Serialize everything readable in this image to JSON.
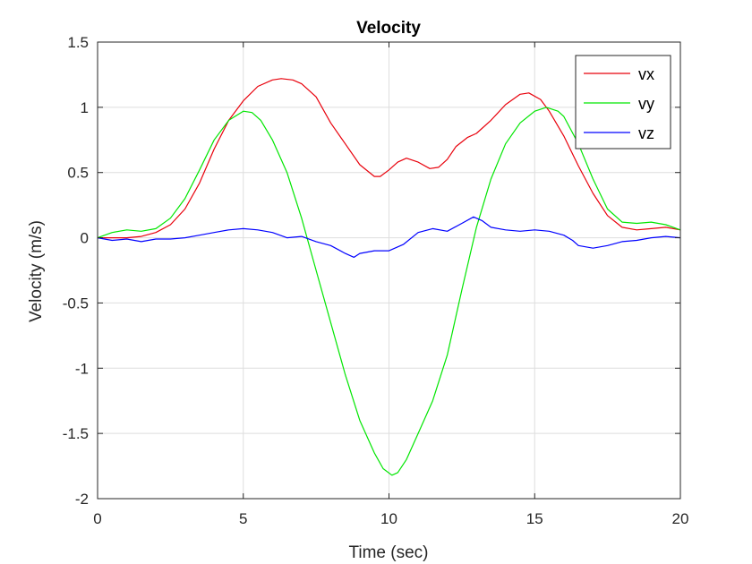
{
  "chart_data": {
    "type": "line",
    "title": "Velocity",
    "xlabel": "Time (sec)",
    "ylabel": "Velocity (m/s)",
    "xlim": [
      0,
      20
    ],
    "ylim": [
      -2,
      1.5
    ],
    "xticks": [
      0,
      5,
      10,
      15,
      20
    ],
    "yticks": [
      1.5,
      1,
      0.5,
      0,
      -0.5,
      -1,
      -1.5,
      -2
    ],
    "xtick_labels": [
      "0",
      "5",
      "10",
      "15",
      "20"
    ],
    "ytick_labels": [
      "1.5",
      "1",
      "0.5",
      "0",
      "-0.5",
      "-1",
      "-1.5",
      "-2"
    ],
    "grid": true,
    "legend": {
      "location": "top-right",
      "entries": [
        "vx",
        "vy",
        "vz"
      ]
    },
    "series": [
      {
        "name": "vx",
        "color": "#e8000b",
        "points": [
          [
            0,
            0.0
          ],
          [
            0.5,
            0.0
          ],
          [
            1,
            0.0
          ],
          [
            1.5,
            0.01
          ],
          [
            2,
            0.04
          ],
          [
            2.5,
            0.1
          ],
          [
            3,
            0.22
          ],
          [
            3.5,
            0.42
          ],
          [
            4,
            0.68
          ],
          [
            4.5,
            0.9
          ],
          [
            5,
            1.05
          ],
          [
            5.5,
            1.16
          ],
          [
            6,
            1.21
          ],
          [
            6.3,
            1.22
          ],
          [
            6.7,
            1.21
          ],
          [
            7,
            1.18
          ],
          [
            7.5,
            1.08
          ],
          [
            8,
            0.88
          ],
          [
            8.5,
            0.72
          ],
          [
            9,
            0.56
          ],
          [
            9.5,
            0.47
          ],
          [
            9.7,
            0.47
          ],
          [
            10,
            0.52
          ],
          [
            10.3,
            0.58
          ],
          [
            10.6,
            0.61
          ],
          [
            11,
            0.58
          ],
          [
            11.4,
            0.53
          ],
          [
            11.7,
            0.54
          ],
          [
            12,
            0.6
          ],
          [
            12.3,
            0.7
          ],
          [
            12.7,
            0.77
          ],
          [
            13,
            0.8
          ],
          [
            13.5,
            0.9
          ],
          [
            14,
            1.02
          ],
          [
            14.5,
            1.1
          ],
          [
            14.8,
            1.11
          ],
          [
            15.2,
            1.06
          ],
          [
            15.5,
            0.97
          ],
          [
            16,
            0.78
          ],
          [
            16.5,
            0.55
          ],
          [
            17,
            0.34
          ],
          [
            17.5,
            0.17
          ],
          [
            18,
            0.08
          ],
          [
            18.5,
            0.06
          ],
          [
            19,
            0.07
          ],
          [
            19.5,
            0.08
          ],
          [
            20,
            0.06
          ]
        ]
      },
      {
        "name": "vy",
        "color": "#00e600",
        "points": [
          [
            0,
            0.0
          ],
          [
            0.5,
            0.04
          ],
          [
            1,
            0.06
          ],
          [
            1.5,
            0.05
          ],
          [
            2,
            0.07
          ],
          [
            2.5,
            0.15
          ],
          [
            3,
            0.3
          ],
          [
            3.5,
            0.52
          ],
          [
            4,
            0.75
          ],
          [
            4.5,
            0.9
          ],
          [
            5,
            0.97
          ],
          [
            5.3,
            0.96
          ],
          [
            5.6,
            0.9
          ],
          [
            6,
            0.75
          ],
          [
            6.5,
            0.5
          ],
          [
            7,
            0.15
          ],
          [
            7.5,
            -0.25
          ],
          [
            8,
            -0.65
          ],
          [
            8.5,
            -1.05
          ],
          [
            9,
            -1.4
          ],
          [
            9.5,
            -1.65
          ],
          [
            9.8,
            -1.77
          ],
          [
            10.1,
            -1.82
          ],
          [
            10.3,
            -1.8
          ],
          [
            10.6,
            -1.7
          ],
          [
            11,
            -1.5
          ],
          [
            11.5,
            -1.25
          ],
          [
            12,
            -0.9
          ],
          [
            12.5,
            -0.4
          ],
          [
            13,
            0.08
          ],
          [
            13.5,
            0.45
          ],
          [
            14,
            0.72
          ],
          [
            14.5,
            0.88
          ],
          [
            15,
            0.97
          ],
          [
            15.4,
            1.0
          ],
          [
            15.8,
            0.97
          ],
          [
            16,
            0.93
          ],
          [
            16.5,
            0.72
          ],
          [
            17,
            0.45
          ],
          [
            17.5,
            0.22
          ],
          [
            18,
            0.12
          ],
          [
            18.5,
            0.11
          ],
          [
            19,
            0.12
          ],
          [
            19.5,
            0.1
          ],
          [
            20,
            0.06
          ]
        ]
      },
      {
        "name": "vz",
        "color": "#0000ff",
        "points": [
          [
            0,
            0.0
          ],
          [
            0.5,
            -0.02
          ],
          [
            1,
            -0.01
          ],
          [
            1.5,
            -0.03
          ],
          [
            2,
            -0.01
          ],
          [
            2.5,
            -0.01
          ],
          [
            3,
            0.0
          ],
          [
            3.5,
            0.02
          ],
          [
            4,
            0.04
          ],
          [
            4.5,
            0.06
          ],
          [
            5,
            0.07
          ],
          [
            5.5,
            0.06
          ],
          [
            6,
            0.04
          ],
          [
            6.5,
            0.0
          ],
          [
            7,
            0.01
          ],
          [
            7.5,
            -0.03
          ],
          [
            8,
            -0.06
          ],
          [
            8.5,
            -0.12
          ],
          [
            8.8,
            -0.15
          ],
          [
            9,
            -0.12
          ],
          [
            9.5,
            -0.1
          ],
          [
            10,
            -0.1
          ],
          [
            10.5,
            -0.05
          ],
          [
            11,
            0.04
          ],
          [
            11.5,
            0.07
          ],
          [
            12,
            0.05
          ],
          [
            12.5,
            0.11
          ],
          [
            12.9,
            0.16
          ],
          [
            13.2,
            0.13
          ],
          [
            13.5,
            0.08
          ],
          [
            14,
            0.06
          ],
          [
            14.5,
            0.05
          ],
          [
            15,
            0.06
          ],
          [
            15.5,
            0.05
          ],
          [
            16,
            0.02
          ],
          [
            16.3,
            -0.02
          ],
          [
            16.5,
            -0.06
          ],
          [
            17,
            -0.08
          ],
          [
            17.5,
            -0.06
          ],
          [
            18,
            -0.03
          ],
          [
            18.5,
            -0.02
          ],
          [
            19,
            0.0
          ],
          [
            19.5,
            0.01
          ],
          [
            20,
            0.0
          ]
        ]
      }
    ]
  }
}
